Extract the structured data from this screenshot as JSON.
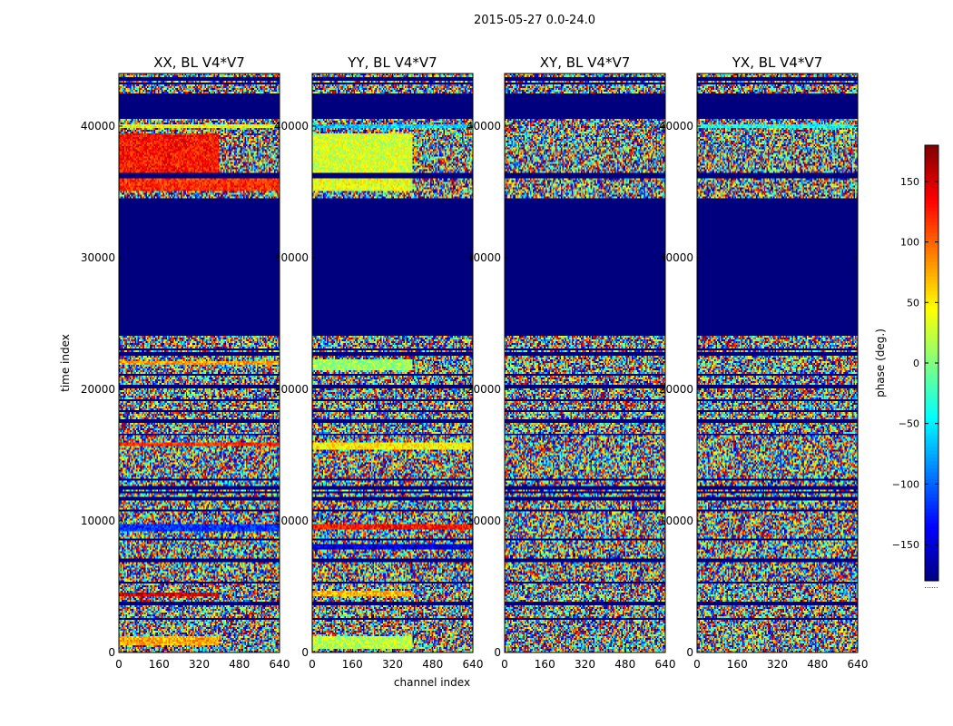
{
  "figure": {
    "suptitle": "2015-05-27 0.0-24.0"
  },
  "colormap": {
    "name": "jet",
    "stops": [
      "#00007f",
      "#0000ff",
      "#0080ff",
      "#00ffff",
      "#80ff80",
      "#ffff00",
      "#ff8000",
      "#ff0000",
      "#7f0000"
    ],
    "background": "#00007f"
  },
  "chart_data": {
    "type": "heatmap",
    "title": "2015-05-27 0.0-24.0",
    "xlabel": "channel index",
    "ylabel": "time index",
    "xlim": [
      0,
      640
    ],
    "ylim": [
      0,
      44000
    ],
    "xticks": [
      0,
      160,
      320,
      480,
      640
    ],
    "yticks": [
      0,
      10000,
      20000,
      30000,
      40000
    ],
    "xtick_labels": [
      "0",
      "160",
      "320",
      "480",
      "640"
    ],
    "ytick_labels": [
      "0",
      "10000",
      "20000",
      "30000",
      "40000"
    ],
    "value_description": "per-pixel visibility phase, noisy (values approximated)",
    "panels": [
      {
        "title": "XX, BL V4*V7",
        "bias_bands": [
          {
            "t0": 500,
            "t1": 1300,
            "value": 75,
            "ch_max": 400
          },
          {
            "t0": 4200,
            "t1": 4600,
            "value": 150,
            "ch_max": 400
          },
          {
            "t0": 9200,
            "t1": 9700,
            "value": -120
          },
          {
            "t0": 15700,
            "t1": 15900,
            "value": 120
          },
          {
            "t0": 21800,
            "t1": 22200,
            "value": 80
          },
          {
            "t0": 35000,
            "t1": 36000,
            "value": 120
          },
          {
            "t0": 36400,
            "t1": 39500,
            "value": 130,
            "ch_max": 400
          },
          {
            "t0": 39900,
            "t1": 40200,
            "value": 40
          }
        ]
      },
      {
        "title": "YY, BL V4*V7",
        "bias_bands": [
          {
            "t0": 300,
            "t1": 1200,
            "value": 20,
            "ch_max": 400
          },
          {
            "t0": 4200,
            "t1": 4700,
            "value": 70,
            "ch_max": 400
          },
          {
            "t0": 7800,
            "t1": 8300,
            "value": -150
          },
          {
            "t0": 9300,
            "t1": 9700,
            "value": 130
          },
          {
            "t0": 15400,
            "t1": 16000,
            "value": 50
          },
          {
            "t0": 21500,
            "t1": 22300,
            "value": 10,
            "ch_max": 400
          },
          {
            "t0": 35000,
            "t1": 36000,
            "value": 40,
            "ch_max": 400
          },
          {
            "t0": 36500,
            "t1": 39500,
            "value": 30,
            "ch_max": 400
          },
          {
            "t0": 39900,
            "t1": 40200,
            "value": -60
          }
        ]
      },
      {
        "title": "XY, BL V4*V7",
        "bias_bands": []
      },
      {
        "title": "YX, BL V4*V7",
        "bias_bands": [
          {
            "t0": 39900,
            "t1": 40200,
            "value": -40
          }
        ]
      }
    ],
    "flagged_ranges": [
      {
        "t0": 24000,
        "t1": 34500
      },
      {
        "t0": 40500,
        "t1": 42500
      },
      {
        "t0": 36000,
        "t1": 36400
      },
      {
        "t0": 22500,
        "t1": 22800
      }
    ],
    "gap_rows": [
      2500,
      3700,
      5300,
      7000,
      8600,
      10800,
      11700,
      12200,
      12500,
      13100,
      16600,
      17600,
      18400,
      19200,
      20200,
      21100,
      23000,
      43200,
      43600
    ],
    "colorbar": {
      "label": "phase (deg.)",
      "vmin": -180,
      "vmax": 180,
      "ticks": [
        -150,
        -100,
        -50,
        0,
        50,
        100,
        150
      ],
      "tick_labels": [
        "−150",
        "−100",
        "−50",
        "0",
        "50",
        "100",
        "150"
      ],
      "footnote": "......"
    }
  }
}
